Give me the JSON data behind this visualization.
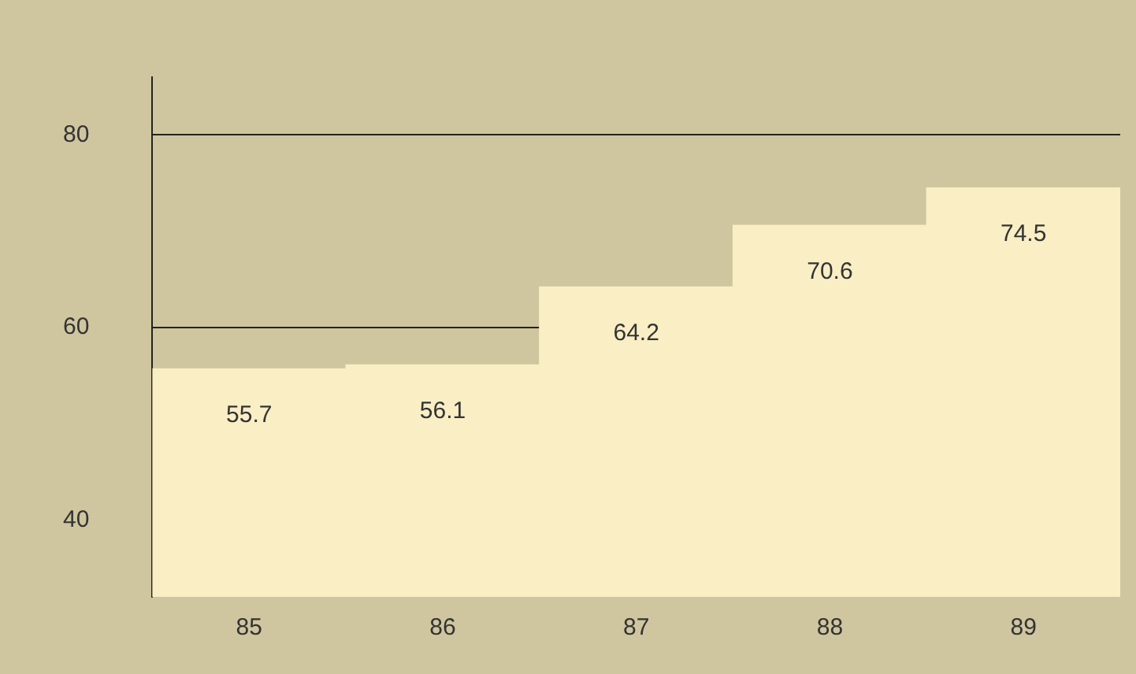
{
  "chart_data": {
    "type": "bar",
    "categories": [
      "85",
      "86",
      "87",
      "88",
      "89"
    ],
    "values": [
      55.7,
      56.1,
      64.2,
      70.6,
      74.5
    ],
    "color": "#f9eec4",
    "ylim": [
      32,
      86
    ],
    "yticks": [
      40,
      60,
      80
    ],
    "grid": "y",
    "data_labels": true,
    "legend": false
  }
}
